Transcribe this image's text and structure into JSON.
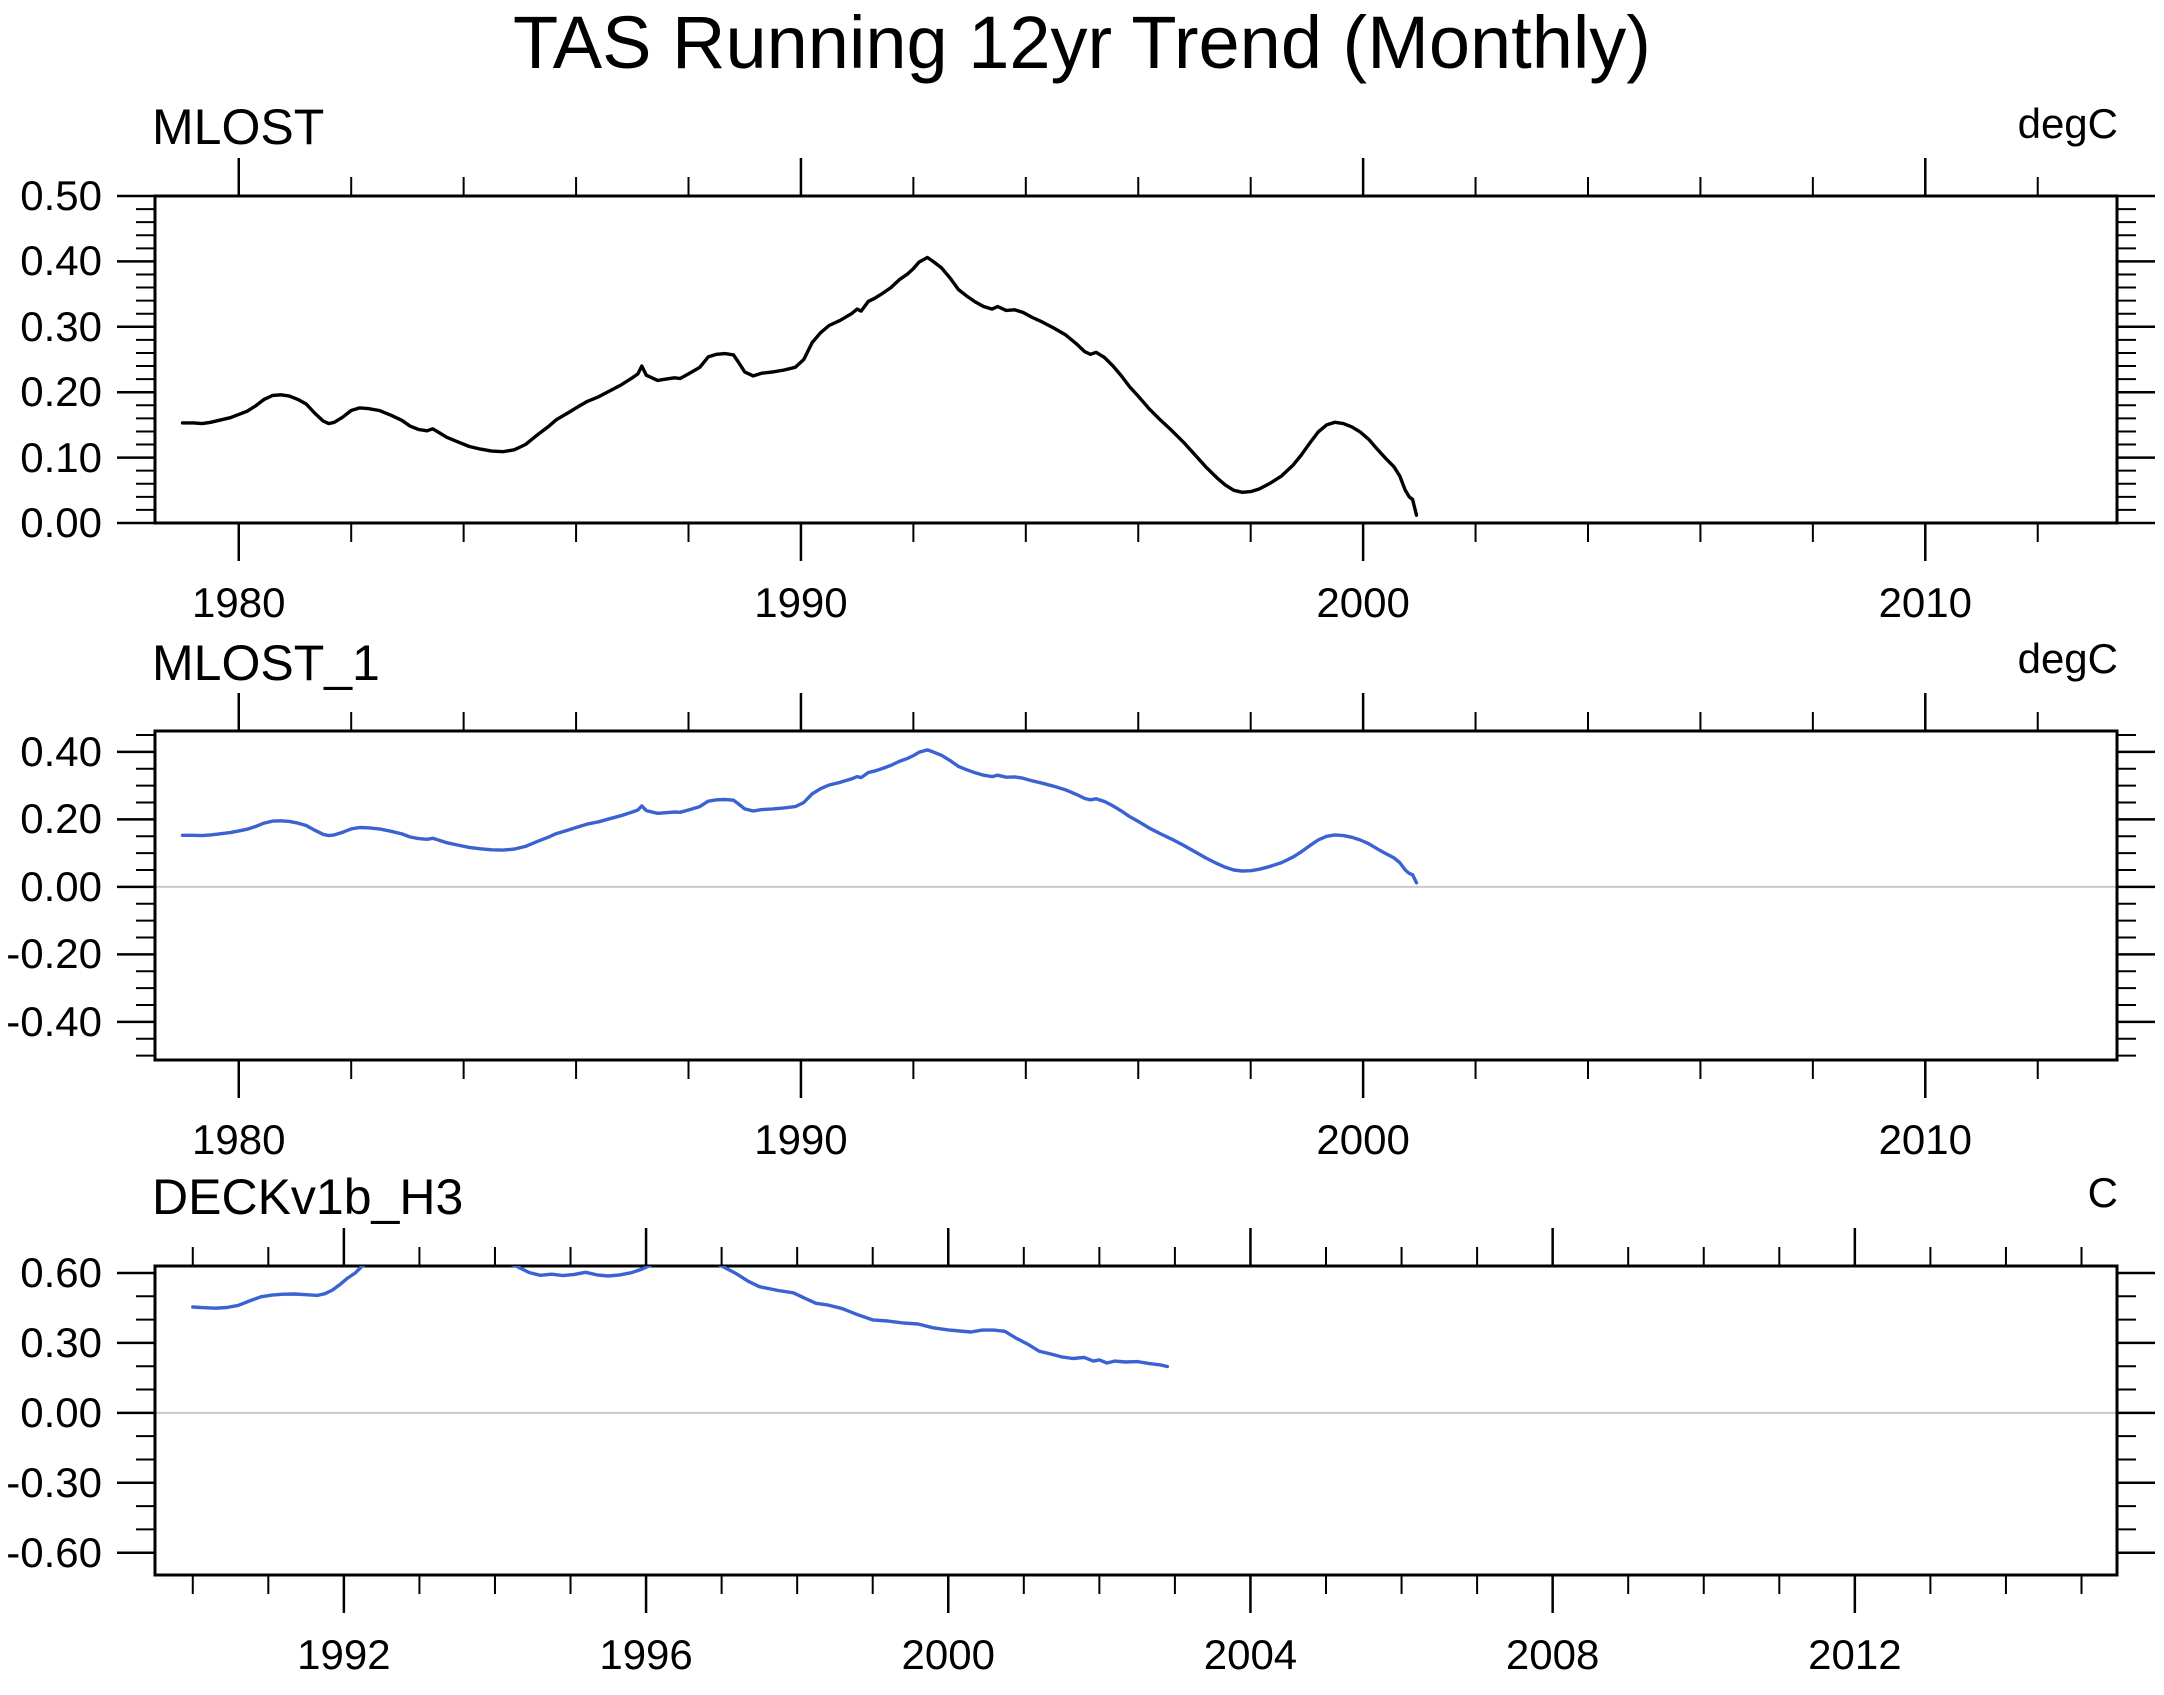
{
  "main_title": "TAS Running 12yr Trend (Monthly)",
  "chart_data": [
    {
      "type": "line",
      "title": "MLOST",
      "unit": "degC",
      "line_color": "#000000",
      "zero_line": false,
      "zero_line_color": "#c9c9c9",
      "xlim": [
        1978.51,
        2013.41
      ],
      "ylim": [
        0.0,
        0.5
      ],
      "legend": "none",
      "grid": false,
      "y_ticks": {
        "major": [
          {
            "v": 0.0,
            "label": "0.00"
          },
          {
            "v": 0.1,
            "label": "0.10"
          },
          {
            "v": 0.2,
            "label": "0.20"
          },
          {
            "v": 0.3,
            "label": "0.30"
          },
          {
            "v": 0.4,
            "label": "0.40"
          },
          {
            "v": 0.5,
            "label": "0.50"
          }
        ],
        "minor": [
          0.02,
          0.04,
          0.06,
          0.08,
          0.12,
          0.14,
          0.16,
          0.18,
          0.22,
          0.24,
          0.26,
          0.28,
          0.32,
          0.34,
          0.36,
          0.38,
          0.42,
          0.44,
          0.46,
          0.48
        ]
      },
      "x_ticks": {
        "major": [
          {
            "v": 1980,
            "label": "1980"
          },
          {
            "v": 1990,
            "label": "1990"
          },
          {
            "v": 2000,
            "label": "2000"
          },
          {
            "v": 2010,
            "label": "2010"
          }
        ],
        "minor": [
          1982,
          1984,
          1986,
          1988,
          1992,
          1994,
          1996,
          1998,
          2002,
          2004,
          2006,
          2008,
          2012
        ]
      },
      "series": [
        [
          1979.0,
          0.153
        ],
        [
          1979.2,
          0.153
        ],
        [
          1979.35,
          0.152
        ],
        [
          1979.5,
          0.154
        ],
        [
          1979.65,
          0.157
        ],
        [
          1979.85,
          0.161
        ],
        [
          1980.0,
          0.166
        ],
        [
          1980.15,
          0.171
        ],
        [
          1980.3,
          0.179
        ],
        [
          1980.45,
          0.189
        ],
        [
          1980.6,
          0.195
        ],
        [
          1980.75,
          0.196
        ],
        [
          1980.9,
          0.194
        ],
        [
          1981.05,
          0.189
        ],
        [
          1981.2,
          0.182
        ],
        [
          1981.35,
          0.168
        ],
        [
          1981.5,
          0.156
        ],
        [
          1981.6,
          0.152
        ],
        [
          1981.7,
          0.154
        ],
        [
          1981.85,
          0.162
        ],
        [
          1982.0,
          0.172
        ],
        [
          1982.15,
          0.176
        ],
        [
          1982.3,
          0.175
        ],
        [
          1982.5,
          0.172
        ],
        [
          1982.7,
          0.165
        ],
        [
          1982.9,
          0.157
        ],
        [
          1983.05,
          0.148
        ],
        [
          1983.2,
          0.143
        ],
        [
          1983.35,
          0.141
        ],
        [
          1983.45,
          0.144
        ],
        [
          1983.55,
          0.139
        ],
        [
          1983.7,
          0.131
        ],
        [
          1983.9,
          0.124
        ],
        [
          1984.1,
          0.117
        ],
        [
          1984.3,
          0.113
        ],
        [
          1984.5,
          0.11
        ],
        [
          1984.7,
          0.109
        ],
        [
          1984.9,
          0.112
        ],
        [
          1985.1,
          0.12
        ],
        [
          1985.3,
          0.134
        ],
        [
          1985.5,
          0.147
        ],
        [
          1985.65,
          0.158
        ],
        [
          1985.85,
          0.168
        ],
        [
          1986.0,
          0.176
        ],
        [
          1986.2,
          0.186
        ],
        [
          1986.4,
          0.193
        ],
        [
          1986.6,
          0.202
        ],
        [
          1986.8,
          0.211
        ],
        [
          1987.0,
          0.222
        ],
        [
          1987.1,
          0.228
        ],
        [
          1987.17,
          0.24
        ],
        [
          1987.25,
          0.226
        ],
        [
          1987.45,
          0.218
        ],
        [
          1987.6,
          0.22
        ],
        [
          1987.75,
          0.222
        ],
        [
          1987.85,
          0.221
        ],
        [
          1988.0,
          0.228
        ],
        [
          1988.2,
          0.238
        ],
        [
          1988.35,
          0.254
        ],
        [
          1988.5,
          0.258
        ],
        [
          1988.65,
          0.259
        ],
        [
          1988.8,
          0.257
        ],
        [
          1988.88,
          0.247
        ],
        [
          1989.0,
          0.231
        ],
        [
          1989.15,
          0.225
        ],
        [
          1989.3,
          0.229
        ],
        [
          1989.5,
          0.231
        ],
        [
          1989.7,
          0.234
        ],
        [
          1989.9,
          0.238
        ],
        [
          1990.05,
          0.25
        ],
        [
          1990.2,
          0.276
        ],
        [
          1990.35,
          0.291
        ],
        [
          1990.5,
          0.302
        ],
        [
          1990.7,
          0.31
        ],
        [
          1990.9,
          0.32
        ],
        [
          1991.0,
          0.327
        ],
        [
          1991.07,
          0.324
        ],
        [
          1991.2,
          0.339
        ],
        [
          1991.3,
          0.343
        ],
        [
          1991.45,
          0.351
        ],
        [
          1991.6,
          0.36
        ],
        [
          1991.75,
          0.372
        ],
        [
          1991.9,
          0.381
        ],
        [
          1992.0,
          0.389
        ],
        [
          1992.1,
          0.399
        ],
        [
          1992.25,
          0.406
        ],
        [
          1992.35,
          0.4
        ],
        [
          1992.5,
          0.39
        ],
        [
          1992.65,
          0.375
        ],
        [
          1992.8,
          0.357
        ],
        [
          1992.95,
          0.347
        ],
        [
          1993.1,
          0.338
        ],
        [
          1993.25,
          0.331
        ],
        [
          1993.4,
          0.327
        ],
        [
          1993.5,
          0.331
        ],
        [
          1993.65,
          0.325
        ],
        [
          1993.8,
          0.326
        ],
        [
          1993.95,
          0.322
        ],
        [
          1994.1,
          0.315
        ],
        [
          1994.3,
          0.307
        ],
        [
          1994.5,
          0.298
        ],
        [
          1994.7,
          0.288
        ],
        [
          1994.9,
          0.274
        ],
        [
          1995.05,
          0.262
        ],
        [
          1995.15,
          0.258
        ],
        [
          1995.25,
          0.261
        ],
        [
          1995.4,
          0.253
        ],
        [
          1995.55,
          0.24
        ],
        [
          1995.7,
          0.225
        ],
        [
          1995.85,
          0.208
        ],
        [
          1996.0,
          0.194
        ],
        [
          1996.2,
          0.174
        ],
        [
          1996.4,
          0.157
        ],
        [
          1996.6,
          0.141
        ],
        [
          1996.8,
          0.124
        ],
        [
          1997.0,
          0.105
        ],
        [
          1997.2,
          0.086
        ],
        [
          1997.4,
          0.069
        ],
        [
          1997.55,
          0.058
        ],
        [
          1997.7,
          0.05
        ],
        [
          1997.85,
          0.047
        ],
        [
          1998.0,
          0.048
        ],
        [
          1998.15,
          0.052
        ],
        [
          1998.35,
          0.061
        ],
        [
          1998.55,
          0.072
        ],
        [
          1998.75,
          0.088
        ],
        [
          1998.9,
          0.104
        ],
        [
          1999.05,
          0.122
        ],
        [
          1999.2,
          0.139
        ],
        [
          1999.35,
          0.15
        ],
        [
          1999.5,
          0.154
        ],
        [
          1999.65,
          0.152
        ],
        [
          1999.8,
          0.147
        ],
        [
          1999.95,
          0.139
        ],
        [
          2000.1,
          0.128
        ],
        [
          2000.25,
          0.113
        ],
        [
          2000.4,
          0.099
        ],
        [
          2000.55,
          0.086
        ],
        [
          2000.65,
          0.072
        ],
        [
          2000.75,
          0.05
        ],
        [
          2000.82,
          0.04
        ],
        [
          2000.88,
          0.036
        ],
        [
          2000.95,
          0.012
        ]
      ]
    },
    {
      "type": "line",
      "title": "MLOST_1",
      "unit": "degC",
      "line_color": "#3b62d2",
      "zero_line": true,
      "zero_line_color": "#c9c9c9",
      "xlim": [
        1978.51,
        2013.41
      ],
      "ylim": [
        -0.513,
        0.462
      ],
      "legend": "none",
      "grid": false,
      "y_ticks": {
        "major": [
          {
            "v": -0.4,
            "label": "-0.40"
          },
          {
            "v": -0.2,
            "label": "-0.20"
          },
          {
            "v": 0.0,
            "label": "0.00"
          },
          {
            "v": 0.2,
            "label": "0.20"
          },
          {
            "v": 0.4,
            "label": "0.40"
          }
        ],
        "minor": [
          -0.5,
          -0.45,
          -0.35,
          -0.3,
          -0.25,
          -0.15,
          -0.1,
          -0.05,
          0.05,
          0.1,
          0.15,
          0.25,
          0.3,
          0.35,
          0.45
        ]
      },
      "x_ticks": {
        "major": [
          {
            "v": 1980,
            "label": "1980"
          },
          {
            "v": 1990,
            "label": "1990"
          },
          {
            "v": 2000,
            "label": "2000"
          },
          {
            "v": 2010,
            "label": "2010"
          }
        ],
        "minor": [
          1982,
          1984,
          1986,
          1988,
          1992,
          1994,
          1996,
          1998,
          2002,
          2004,
          2006,
          2008,
          2012
        ]
      },
      "series": "same_as_panel_0"
    },
    {
      "type": "line",
      "title": "DECKv1b_H3",
      "unit": "C",
      "line_color": "#3b62d2",
      "zero_line": true,
      "zero_line_color": "#c9c9c9",
      "xlim": [
        1989.5,
        2015.47
      ],
      "ylim": [
        -0.6955,
        0.63
      ],
      "legend": "none",
      "grid": false,
      "y_ticks": {
        "major": [
          {
            "v": -0.6,
            "label": "-0.60"
          },
          {
            "v": -0.3,
            "label": "-0.30"
          },
          {
            "v": 0.0,
            "label": "0.00"
          },
          {
            "v": 0.3,
            "label": "0.30"
          },
          {
            "v": 0.6,
            "label": "0.60"
          }
        ],
        "minor": [
          -0.5,
          -0.4,
          -0.2,
          -0.1,
          0.1,
          0.2,
          0.4,
          0.5
        ]
      },
      "x_ticks": {
        "major": [
          {
            "v": 1992,
            "label": "1992"
          },
          {
            "v": 1996,
            "label": "1996"
          },
          {
            "v": 2000,
            "label": "2000"
          },
          {
            "v": 2004,
            "label": "2004"
          },
          {
            "v": 2008,
            "label": "2008"
          },
          {
            "v": 2012,
            "label": "2012"
          }
        ],
        "minor": [
          1990,
          1991,
          1993,
          1994,
          1995,
          1997,
          1998,
          1999,
          2001,
          2002,
          2003,
          2005,
          2006,
          2007,
          2009,
          2010,
          2011,
          2013,
          2014,
          2015
        ]
      },
      "series": [
        [
          1990.0,
          0.454
        ],
        [
          1990.15,
          0.451
        ],
        [
          1990.3,
          0.449
        ],
        [
          1990.45,
          0.452
        ],
        [
          1990.6,
          0.461
        ],
        [
          1990.75,
          0.48
        ],
        [
          1990.9,
          0.498
        ],
        [
          1991.05,
          0.505
        ],
        [
          1991.2,
          0.509
        ],
        [
          1991.35,
          0.51
        ],
        [
          1991.5,
          0.507
        ],
        [
          1991.65,
          0.504
        ],
        [
          1991.75,
          0.511
        ],
        [
          1991.85,
          0.527
        ],
        [
          1991.95,
          0.551
        ],
        [
          1992.05,
          0.578
        ],
        [
          1992.15,
          0.6
        ],
        [
          1992.25,
          0.632
        ],
        [
          1992.45,
          0.656
        ],
        [
          1992.8,
          0.665
        ],
        [
          1993.3,
          0.67
        ],
        [
          1993.8,
          0.663
        ],
        [
          1994.1,
          0.648
        ],
        [
          1994.28,
          0.63
        ],
        [
          1994.45,
          0.602
        ],
        [
          1994.6,
          0.59
        ],
        [
          1994.75,
          0.595
        ],
        [
          1994.9,
          0.589
        ],
        [
          1995.05,
          0.594
        ],
        [
          1995.2,
          0.603
        ],
        [
          1995.35,
          0.592
        ],
        [
          1995.5,
          0.587
        ],
        [
          1995.65,
          0.592
        ],
        [
          1995.8,
          0.601
        ],
        [
          1995.95,
          0.617
        ],
        [
          1996.1,
          0.64
        ],
        [
          1996.4,
          0.658
        ],
        [
          1996.7,
          0.655
        ],
        [
          1996.9,
          0.645
        ],
        [
          1997.05,
          0.622
        ],
        [
          1997.2,
          0.596
        ],
        [
          1997.35,
          0.565
        ],
        [
          1997.5,
          0.541
        ],
        [
          1997.75,
          0.525
        ],
        [
          1997.95,
          0.515
        ],
        [
          1998.1,
          0.492
        ],
        [
          1998.25,
          0.47
        ],
        [
          1998.4,
          0.463
        ],
        [
          1998.6,
          0.447
        ],
        [
          1998.8,
          0.421
        ],
        [
          1999.0,
          0.399
        ],
        [
          1999.2,
          0.394
        ],
        [
          1999.4,
          0.386
        ],
        [
          1999.6,
          0.381
        ],
        [
          1999.8,
          0.365
        ],
        [
          2000.0,
          0.356
        ],
        [
          2000.15,
          0.351
        ],
        [
          2000.3,
          0.347
        ],
        [
          2000.45,
          0.355
        ],
        [
          2000.6,
          0.355
        ],
        [
          2000.75,
          0.35
        ],
        [
          2000.9,
          0.32
        ],
        [
          2001.05,
          0.295
        ],
        [
          2001.2,
          0.265
        ],
        [
          2001.35,
          0.253
        ],
        [
          2001.5,
          0.24
        ],
        [
          2001.65,
          0.233
        ],
        [
          2001.8,
          0.238
        ],
        [
          2001.92,
          0.222
        ],
        [
          2002.0,
          0.227
        ],
        [
          2002.1,
          0.214
        ],
        [
          2002.2,
          0.222
        ],
        [
          2002.35,
          0.218
        ],
        [
          2002.5,
          0.22
        ],
        [
          2002.65,
          0.212
        ],
        [
          2002.8,
          0.206
        ],
        [
          2002.9,
          0.199
        ]
      ]
    }
  ]
}
